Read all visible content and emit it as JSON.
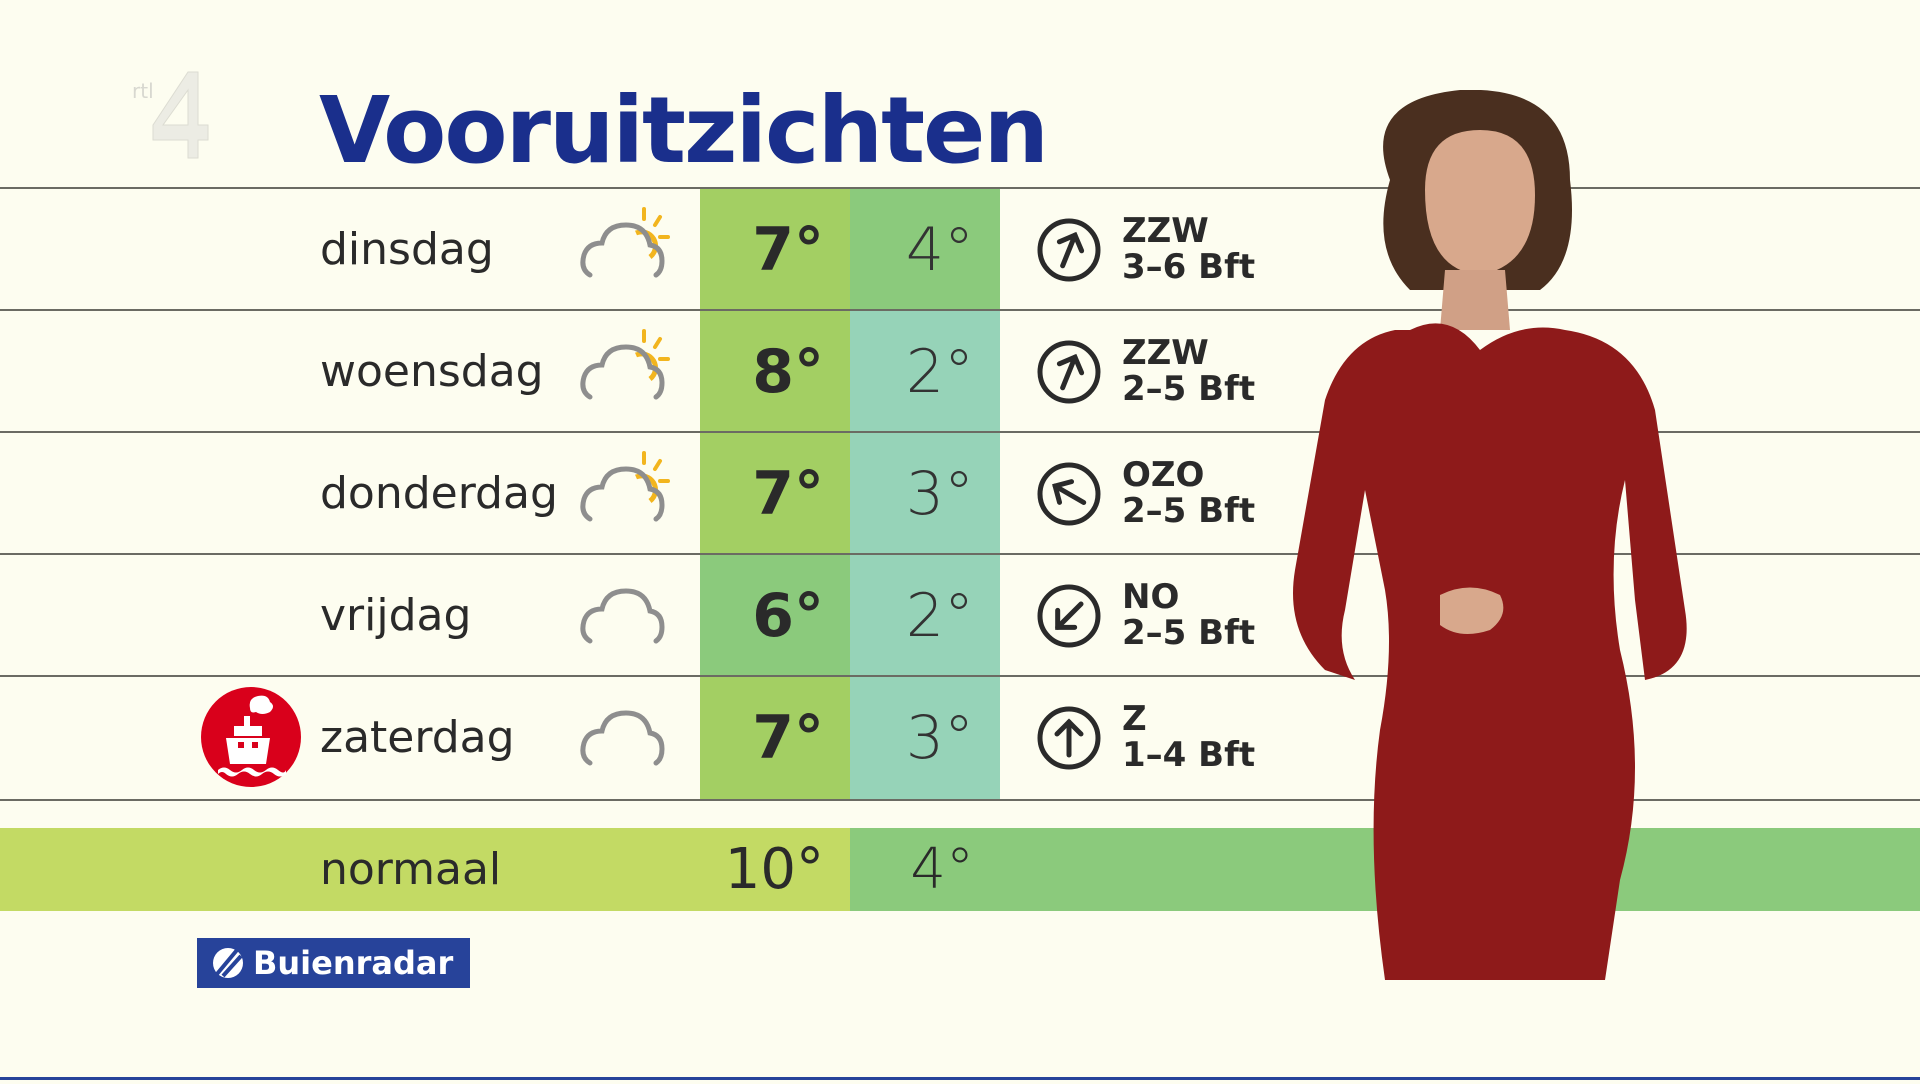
{
  "header": {
    "title": "Vooruitzichten",
    "channel_logo": "RTL 4"
  },
  "colors": {
    "title": "#1a2f8c",
    "high_default": "#a3cf63",
    "green": "#8bca7c",
    "teal": "#96d3b8",
    "normal_high": "#c3da64",
    "normal_low": "#8bca7c",
    "boat_badge": "#d9001b"
  },
  "forecast": [
    {
      "day": "dinsdag",
      "icon": "cloud-sun-icon",
      "high": "7°",
      "low": "4°",
      "high_color": "#a3cf63",
      "low_color": "#8bca7c",
      "wind_dir": "ZZW",
      "wind_force": "3–6 Bft",
      "arrow_rotation_deg": 22
    },
    {
      "day": "woensdag",
      "icon": "cloud-sun-icon",
      "high": "8°",
      "low": "2°",
      "high_color": "#a3cf63",
      "low_color": "#96d3b8",
      "wind_dir": "ZZW",
      "wind_force": "2–5 Bft",
      "arrow_rotation_deg": 22
    },
    {
      "day": "donderdag",
      "icon": "cloud-sun-icon",
      "high": "7°",
      "low": "3°",
      "high_color": "#a3cf63",
      "low_color": "#96d3b8",
      "wind_dir": "OZO",
      "wind_force": "2–5 Bft",
      "arrow_rotation_deg": -60
    },
    {
      "day": "vrijdag",
      "icon": "cloud-icon",
      "high": "6°",
      "low": "2°",
      "high_color": "#8bca7c",
      "low_color": "#96d3b8",
      "wind_dir": "NO",
      "wind_force": "2–5 Bft",
      "arrow_rotation_deg": 225
    },
    {
      "day": "zaterdag",
      "icon": "cloud-icon",
      "high": "7°",
      "low": "3°",
      "high_color": "#a3cf63",
      "low_color": "#96d3b8",
      "wind_dir": "Z",
      "wind_force": "1–4 Bft",
      "arrow_rotation_deg": 0,
      "badge": "boat-icon"
    }
  ],
  "normal": {
    "label": "normaal",
    "high": "10°",
    "low": "4°"
  },
  "sponsor": {
    "label": "Buienradar"
  }
}
